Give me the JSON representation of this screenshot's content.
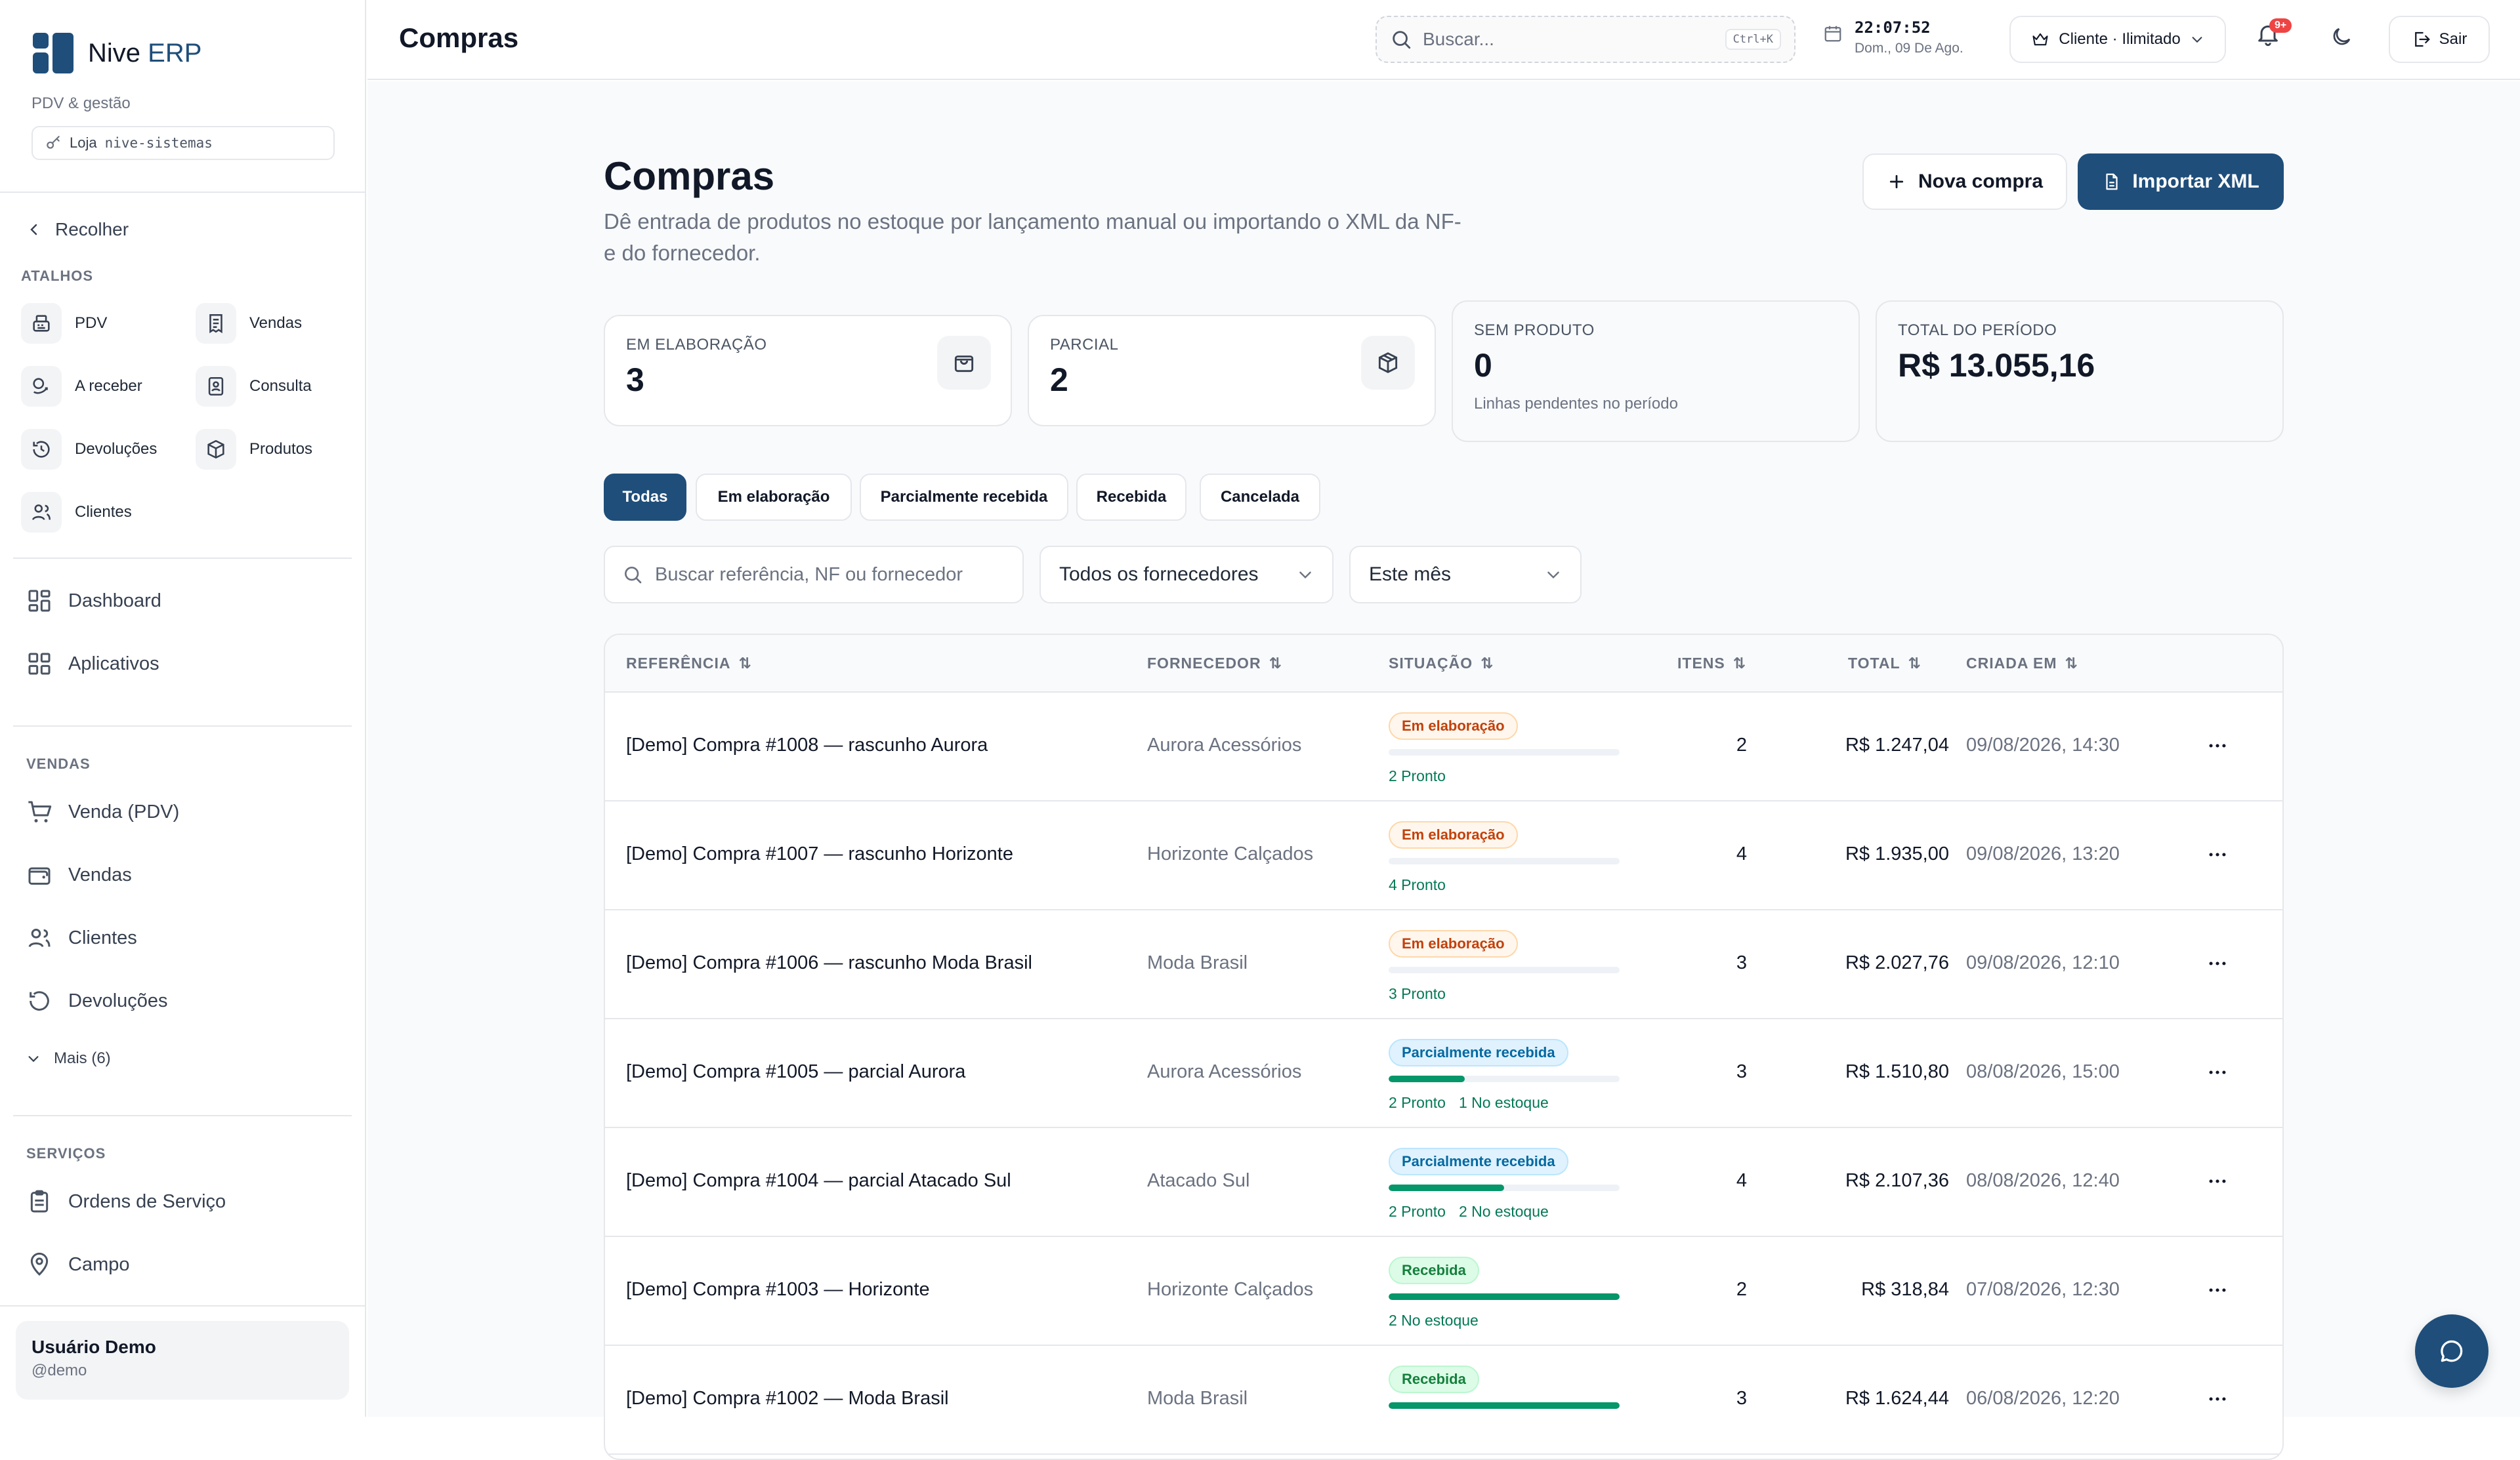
{
  "brand": {
    "name_main": "Nive",
    "name_accent": "ERP",
    "subtitle": "PDV & gestão",
    "store_label": "Loja",
    "store_slug": "nive-sistemas",
    "color": "#1f4e7a"
  },
  "sidebar": {
    "collapse_label": "Recolher",
    "shortcuts_label": "ATALHOS",
    "shortcuts": [
      {
        "label": "PDV",
        "icon": "register-icon"
      },
      {
        "label": "Vendas",
        "icon": "receipt-icon"
      },
      {
        "label": "A receber",
        "icon": "coins-icon"
      },
      {
        "label": "Consulta",
        "icon": "id-card-icon"
      },
      {
        "label": "Devoluções",
        "icon": "return-icon"
      },
      {
        "label": "Produtos",
        "icon": "box-icon"
      },
      {
        "label": "Clientes",
        "icon": "users-icon"
      }
    ],
    "main_nav": [
      {
        "label": "Dashboard",
        "icon": "grid-icon"
      },
      {
        "label": "Aplicativos",
        "icon": "apps-icon"
      }
    ],
    "vendas_label": "VENDAS",
    "vendas_nav": [
      {
        "label": "Venda (PDV)",
        "icon": "cart-icon"
      },
      {
        "label": "Vendas",
        "icon": "wallet-icon"
      },
      {
        "label": "Clientes",
        "icon": "users-icon"
      },
      {
        "label": "Devoluções",
        "icon": "return-icon"
      }
    ],
    "more_label": "Mais (6)",
    "servicos_label": "SERVIÇOS",
    "servicos_nav": [
      {
        "label": "Ordens de Serviço",
        "icon": "clipboard-icon"
      },
      {
        "label": "Campo",
        "icon": "map-pin-icon"
      }
    ],
    "user": {
      "name": "Usuário Demo",
      "handle": "@demo"
    }
  },
  "topbar": {
    "title": "Compras",
    "search_placeholder": "Buscar...",
    "search_shortcut": "Ctrl+K",
    "time": "22:07:52",
    "date": "Dom., 09 De Ago.",
    "plan_label": "Cliente · Ilimitado",
    "notifications_badge": "9+",
    "logout_label": "Sair"
  },
  "page": {
    "title": "Compras",
    "description": "Dê entrada de produtos no estoque por lançamento manual ou importando o XML da NF-e do fornecedor.",
    "new_button": "Nova compra",
    "import_button": "Importar XML"
  },
  "kpis": [
    {
      "label": "EM ELABORAÇÃO",
      "value": "3",
      "icon": "bag-icon"
    },
    {
      "label": "PARCIAL",
      "value": "2",
      "icon": "package-icon"
    },
    {
      "label": "SEM PRODUTO",
      "value": "0",
      "sub": "Linhas pendentes no período"
    },
    {
      "label": "TOTAL DO PERÍODO",
      "value": "R$ 13.055,16"
    }
  ],
  "tabs": [
    "Todas",
    "Em elaboração",
    "Parcialmente recebida",
    "Recebida",
    "Cancelada"
  ],
  "filters": {
    "search_placeholder": "Buscar referência, NF ou fornecedor",
    "supplier_value": "Todos os fornecedores",
    "period_value": "Este mês"
  },
  "table": {
    "columns": [
      "REFERÊNCIA",
      "FORNECEDOR",
      "SITUAÇÃO",
      "ITENS",
      "TOTAL",
      "CRIADA EM"
    ],
    "rows": [
      {
        "ref": "[Demo] Compra #1008 — rascunho Aurora",
        "supplier": "Aurora Acessórios",
        "status": "Em elaboração",
        "kind": "draft",
        "progress": 0,
        "stock": [
          "2 Pronto"
        ],
        "items": "2",
        "total": "R$ 1.247,04",
        "created": "09/08/2026, 14:30"
      },
      {
        "ref": "[Demo] Compra #1007 — rascunho Horizonte",
        "supplier": "Horizonte Calçados",
        "status": "Em elaboração",
        "kind": "draft",
        "progress": 0,
        "stock": [
          "4 Pronto"
        ],
        "items": "4",
        "total": "R$ 1.935,00",
        "created": "09/08/2026, 13:20"
      },
      {
        "ref": "[Demo] Compra #1006 — rascunho Moda Brasil",
        "supplier": "Moda Brasil",
        "status": "Em elaboração",
        "kind": "draft",
        "progress": 0,
        "stock": [
          "3 Pronto"
        ],
        "items": "3",
        "total": "R$ 2.027,76",
        "created": "09/08/2026, 12:10"
      },
      {
        "ref": "[Demo] Compra #1005 — parcial Aurora",
        "supplier": "Aurora Acessórios",
        "status": "Parcialmente recebida",
        "kind": "partial",
        "progress": 0.33,
        "stock": [
          "2 Pronto",
          "1 No estoque"
        ],
        "items": "3",
        "total": "R$ 1.510,80",
        "created": "08/08/2026, 15:00"
      },
      {
        "ref": "[Demo] Compra #1004 — parcial Atacado Sul",
        "supplier": "Atacado Sul",
        "status": "Parcialmente recebida",
        "kind": "partial",
        "progress": 0.5,
        "stock": [
          "2 Pronto",
          "2 No estoque"
        ],
        "items": "4",
        "total": "R$ 2.107,36",
        "created": "08/08/2026, 12:40"
      },
      {
        "ref": "[Demo] Compra #1003 — Horizonte",
        "supplier": "Horizonte Calçados",
        "status": "Recebida",
        "kind": "received",
        "progress": 1,
        "stock": [
          "2 No estoque"
        ],
        "items": "2",
        "total": "R$ 318,84",
        "created": "07/08/2026, 12:30"
      },
      {
        "ref": "[Demo] Compra #1002 — Moda Brasil",
        "supplier": "Moda Brasil",
        "status": "Recebida",
        "kind": "received",
        "progress": 1,
        "stock": [],
        "items": "3",
        "total": "R$ 1.624,44",
        "created": "06/08/2026, 12:20"
      }
    ]
  }
}
